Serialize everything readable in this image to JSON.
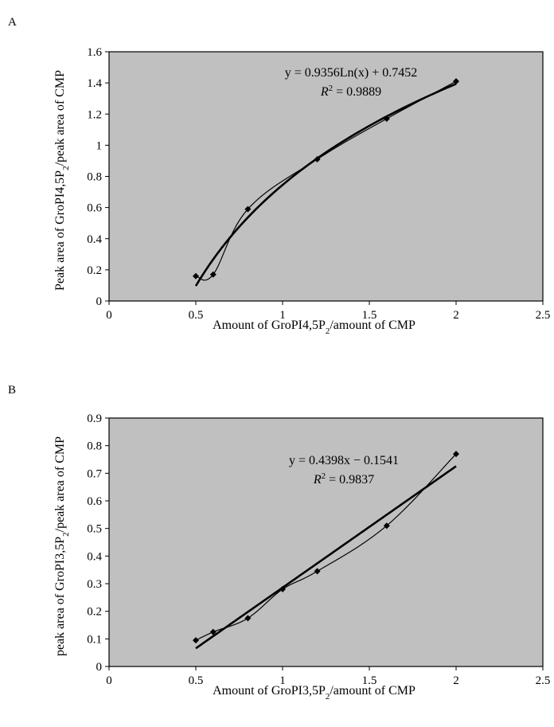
{
  "chart_data": [
    {
      "panel_label": "A",
      "type": "scatter",
      "xlabel_main": "Amount of GroPI4,5P",
      "xlabel_sub": "2",
      "xlabel_tail": "/amount of CMP",
      "ylabel_main": "Peak area of GroPI4,5P",
      "ylabel_sub": "2",
      "ylabel_tail": "/peak area of CMP",
      "xlim": [
        0,
        2.5
      ],
      "ylim": [
        0,
        1.6
      ],
      "x_ticks": [
        "0",
        "0.5",
        "1",
        "1.5",
        "2",
        "2.5"
      ],
      "y_ticks": [
        "0",
        "0.2",
        "0.4",
        "0.6",
        "0.8",
        "1",
        "1.2",
        "1.4",
        "1.6"
      ],
      "plot_background": "#c0c0c0",
      "grid": false,
      "points": {
        "x": [
          0.5,
          0.6,
          0.8,
          1.2,
          1.6,
          2.0
        ],
        "y": [
          0.16,
          0.17,
          0.59,
          0.91,
          1.17,
          1.41
        ]
      },
      "trendline": {
        "kind": "log",
        "a": 0.9356,
        "b": 0.7452,
        "x_range": [
          0.5,
          2.0
        ]
      },
      "equation": "y = 0.9356Ln(x) + 0.7452",
      "r2_value": "= 0.9889"
    },
    {
      "panel_label": "B",
      "type": "scatter",
      "xlabel_main": "Amount of GroPI3,5P",
      "xlabel_sub": "2",
      "xlabel_tail": "/amount of CMP",
      "ylabel_main": "peak area of GroPI3,5P",
      "ylabel_sub": "2",
      "ylabel_tail": "/peak area of CMP",
      "xlim": [
        0,
        2.5
      ],
      "ylim": [
        0,
        0.9
      ],
      "x_ticks": [
        "0",
        "0.5",
        "1",
        "1.5",
        "2",
        "2.5"
      ],
      "y_ticks": [
        "0",
        "0.1",
        "0.2",
        "0.3",
        "0.4",
        "0.5",
        "0.6",
        "0.7",
        "0.8",
        "0.9"
      ],
      "plot_background": "#c0c0c0",
      "grid": false,
      "points": {
        "x": [
          0.5,
          0.6,
          0.8,
          1.0,
          1.2,
          1.6,
          2.0
        ],
        "y": [
          0.095,
          0.125,
          0.175,
          0.28,
          0.345,
          0.51,
          0.77
        ]
      },
      "trendline": {
        "kind": "linear",
        "a": 0.4398,
        "b": -0.1541,
        "x_range": [
          0.5,
          2.0
        ]
      },
      "equation": "y = 0.4398x − 0.1541",
      "r2_value": "= 0.9837"
    }
  ]
}
